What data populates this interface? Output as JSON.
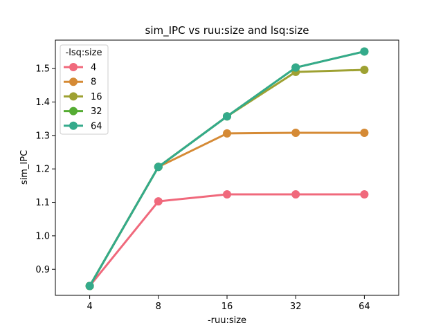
{
  "chart_data": {
    "type": "line",
    "title": "sim_IPC vs ruu:size and lsq:size",
    "xlabel": "-ruu:size",
    "ylabel": "sim_IPC",
    "categories": [
      "4",
      "8",
      "16",
      "32",
      "64"
    ],
    "ylim": [
      0.822,
      1.585
    ],
    "yticks": [
      0.9,
      1.0,
      1.1,
      1.2,
      1.3,
      1.4,
      1.5
    ],
    "ytick_labels": [
      "0.9",
      "1.0",
      "1.1",
      "1.2",
      "1.3",
      "1.4",
      "1.5"
    ],
    "grid": false,
    "legend": {
      "title": "-lsq:size",
      "placement": "top-left"
    },
    "series": [
      {
        "name": "4",
        "color": "#f0697c",
        "values": [
          0.85,
          1.103,
          1.124,
          1.124,
          1.124
        ]
      },
      {
        "name": "8",
        "color": "#d58a35",
        "values": [
          0.85,
          1.206,
          1.306,
          1.308,
          1.308
        ]
      },
      {
        "name": "16",
        "color": "#9ea132",
        "values": [
          0.85,
          1.206,
          1.357,
          1.49,
          1.496
        ]
      },
      {
        "name": "32",
        "color": "#55ac33",
        "values": [
          0.85,
          1.206,
          1.357,
          1.503,
          1.551
        ]
      },
      {
        "name": "64",
        "color": "#34aa8b",
        "values": [
          0.85,
          1.206,
          1.357,
          1.503,
          1.551
        ]
      }
    ]
  }
}
